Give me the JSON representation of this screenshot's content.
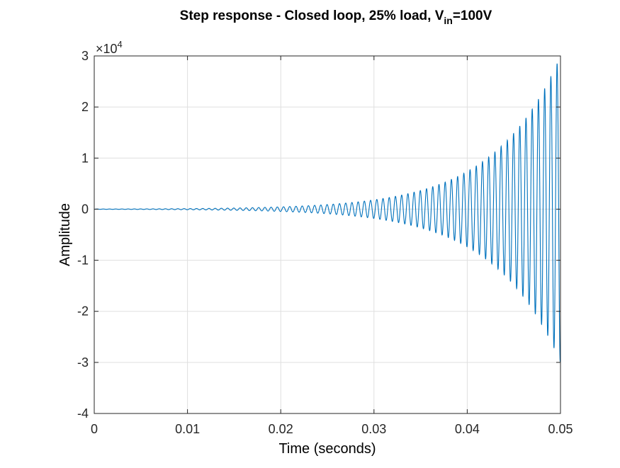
{
  "chart_data": {
    "type": "line",
    "title": {
      "main": "Step response - Closed loop, 25% load, V",
      "subscript": "in",
      "suffix": "=100V"
    },
    "xlabel": "Time (seconds)",
    "ylabel": "Amplitude",
    "xlim": [
      0,
      0.05
    ],
    "ylim": [
      -40000,
      30000
    ],
    "xticks": [
      0,
      0.01,
      0.02,
      0.03,
      0.04,
      0.05
    ],
    "xtick_labels": [
      "0",
      "0.01",
      "0.02",
      "0.03",
      "0.04",
      "0.05"
    ],
    "yticks": [
      -40000,
      -30000,
      -20000,
      -10000,
      0,
      10000,
      20000,
      30000
    ],
    "ytick_labels": [
      "-4",
      "-3",
      "-2",
      "-1",
      "0",
      "1",
      "2",
      "3"
    ],
    "y_exponent": {
      "base": "×10",
      "power": "4"
    },
    "grid": true,
    "series": [
      {
        "color": "#0072BD",
        "envelope_peaks": [
          {
            "t": 0.03,
            "y": 450
          },
          {
            "t": 0.0313,
            "y": -500
          },
          {
            "t": 0.0326,
            "y": 600
          },
          {
            "t": 0.0339,
            "y": -680
          },
          {
            "t": 0.0349,
            "y": 1000
          },
          {
            "t": 0.0355,
            "y": -1100
          },
          {
            "t": 0.0362,
            "y": 1350
          },
          {
            "t": 0.0369,
            "y": -1500
          },
          {
            "t": 0.0375,
            "y": 1800
          },
          {
            "t": 0.0382,
            "y": -2000
          },
          {
            "t": 0.0388,
            "y": 2700
          },
          {
            "t": 0.0395,
            "y": -3000
          },
          {
            "t": 0.0402,
            "y": 3600
          },
          {
            "t": 0.0408,
            "y": -4200
          },
          {
            "t": 0.0414,
            "y": 5000
          },
          {
            "t": 0.0421,
            "y": -5500
          },
          {
            "t": 0.0428,
            "y": 6500
          },
          {
            "t": 0.0434,
            "y": -7500
          },
          {
            "t": 0.0441,
            "y": 9000
          },
          {
            "t": 0.0447,
            "y": -11000
          },
          {
            "t": 0.0454,
            "y": 12000
          },
          {
            "t": 0.046,
            "y": -14000
          },
          {
            "t": 0.0467,
            "y": 13500
          },
          {
            "t": 0.0474,
            "y": -15500
          },
          {
            "t": 0.048,
            "y": 18300
          },
          {
            "t": 0.0481,
            "y": -21500
          },
          {
            "t": 0.0488,
            "y": 25500
          },
          {
            "t": 0.0494,
            "y": -30000
          },
          {
            "t": 0.05,
            "y": 11000
          }
        ],
        "frequency_hz": 1500,
        "growth_rate": 140,
        "final_amplitude": 30000
      }
    ]
  }
}
